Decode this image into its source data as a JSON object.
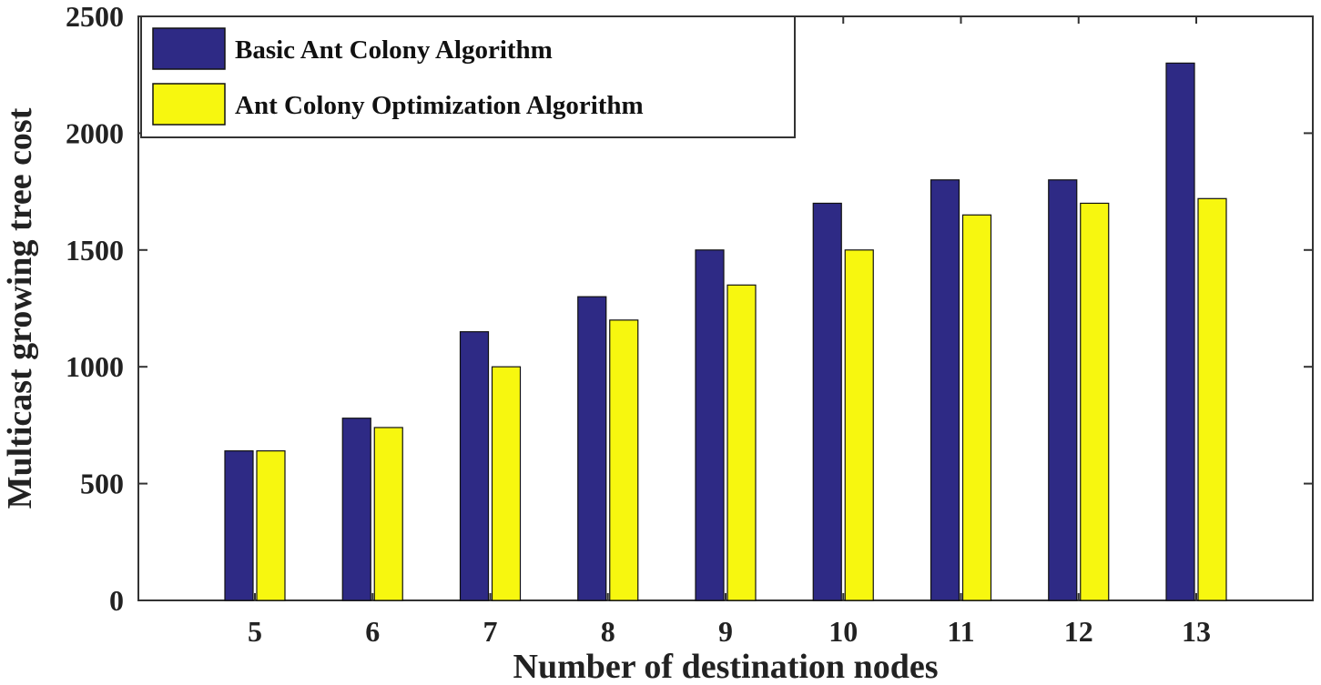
{
  "chart_data": {
    "type": "bar",
    "title": "",
    "xlabel": "Number of destination nodes",
    "ylabel": "Multicast growing tree cost",
    "categories": [
      "5",
      "6",
      "7",
      "8",
      "9",
      "10",
      "11",
      "12",
      "13"
    ],
    "ylim": [
      0,
      2500
    ],
    "yticks": [
      0,
      500,
      1000,
      1500,
      2000,
      2500
    ],
    "grid": false,
    "legend_position": "top-left",
    "series": [
      {
        "name": "Basic Ant Colony Algorithm",
        "color": "#2e2a85",
        "values": [
          640,
          780,
          1150,
          1300,
          1500,
          1700,
          1800,
          1800,
          2300
        ]
      },
      {
        "name": "Ant Colony Optimization Algorithm",
        "color": "#f7f70f",
        "values": [
          640,
          740,
          1000,
          1200,
          1350,
          1500,
          1650,
          1700,
          1720
        ]
      }
    ]
  }
}
